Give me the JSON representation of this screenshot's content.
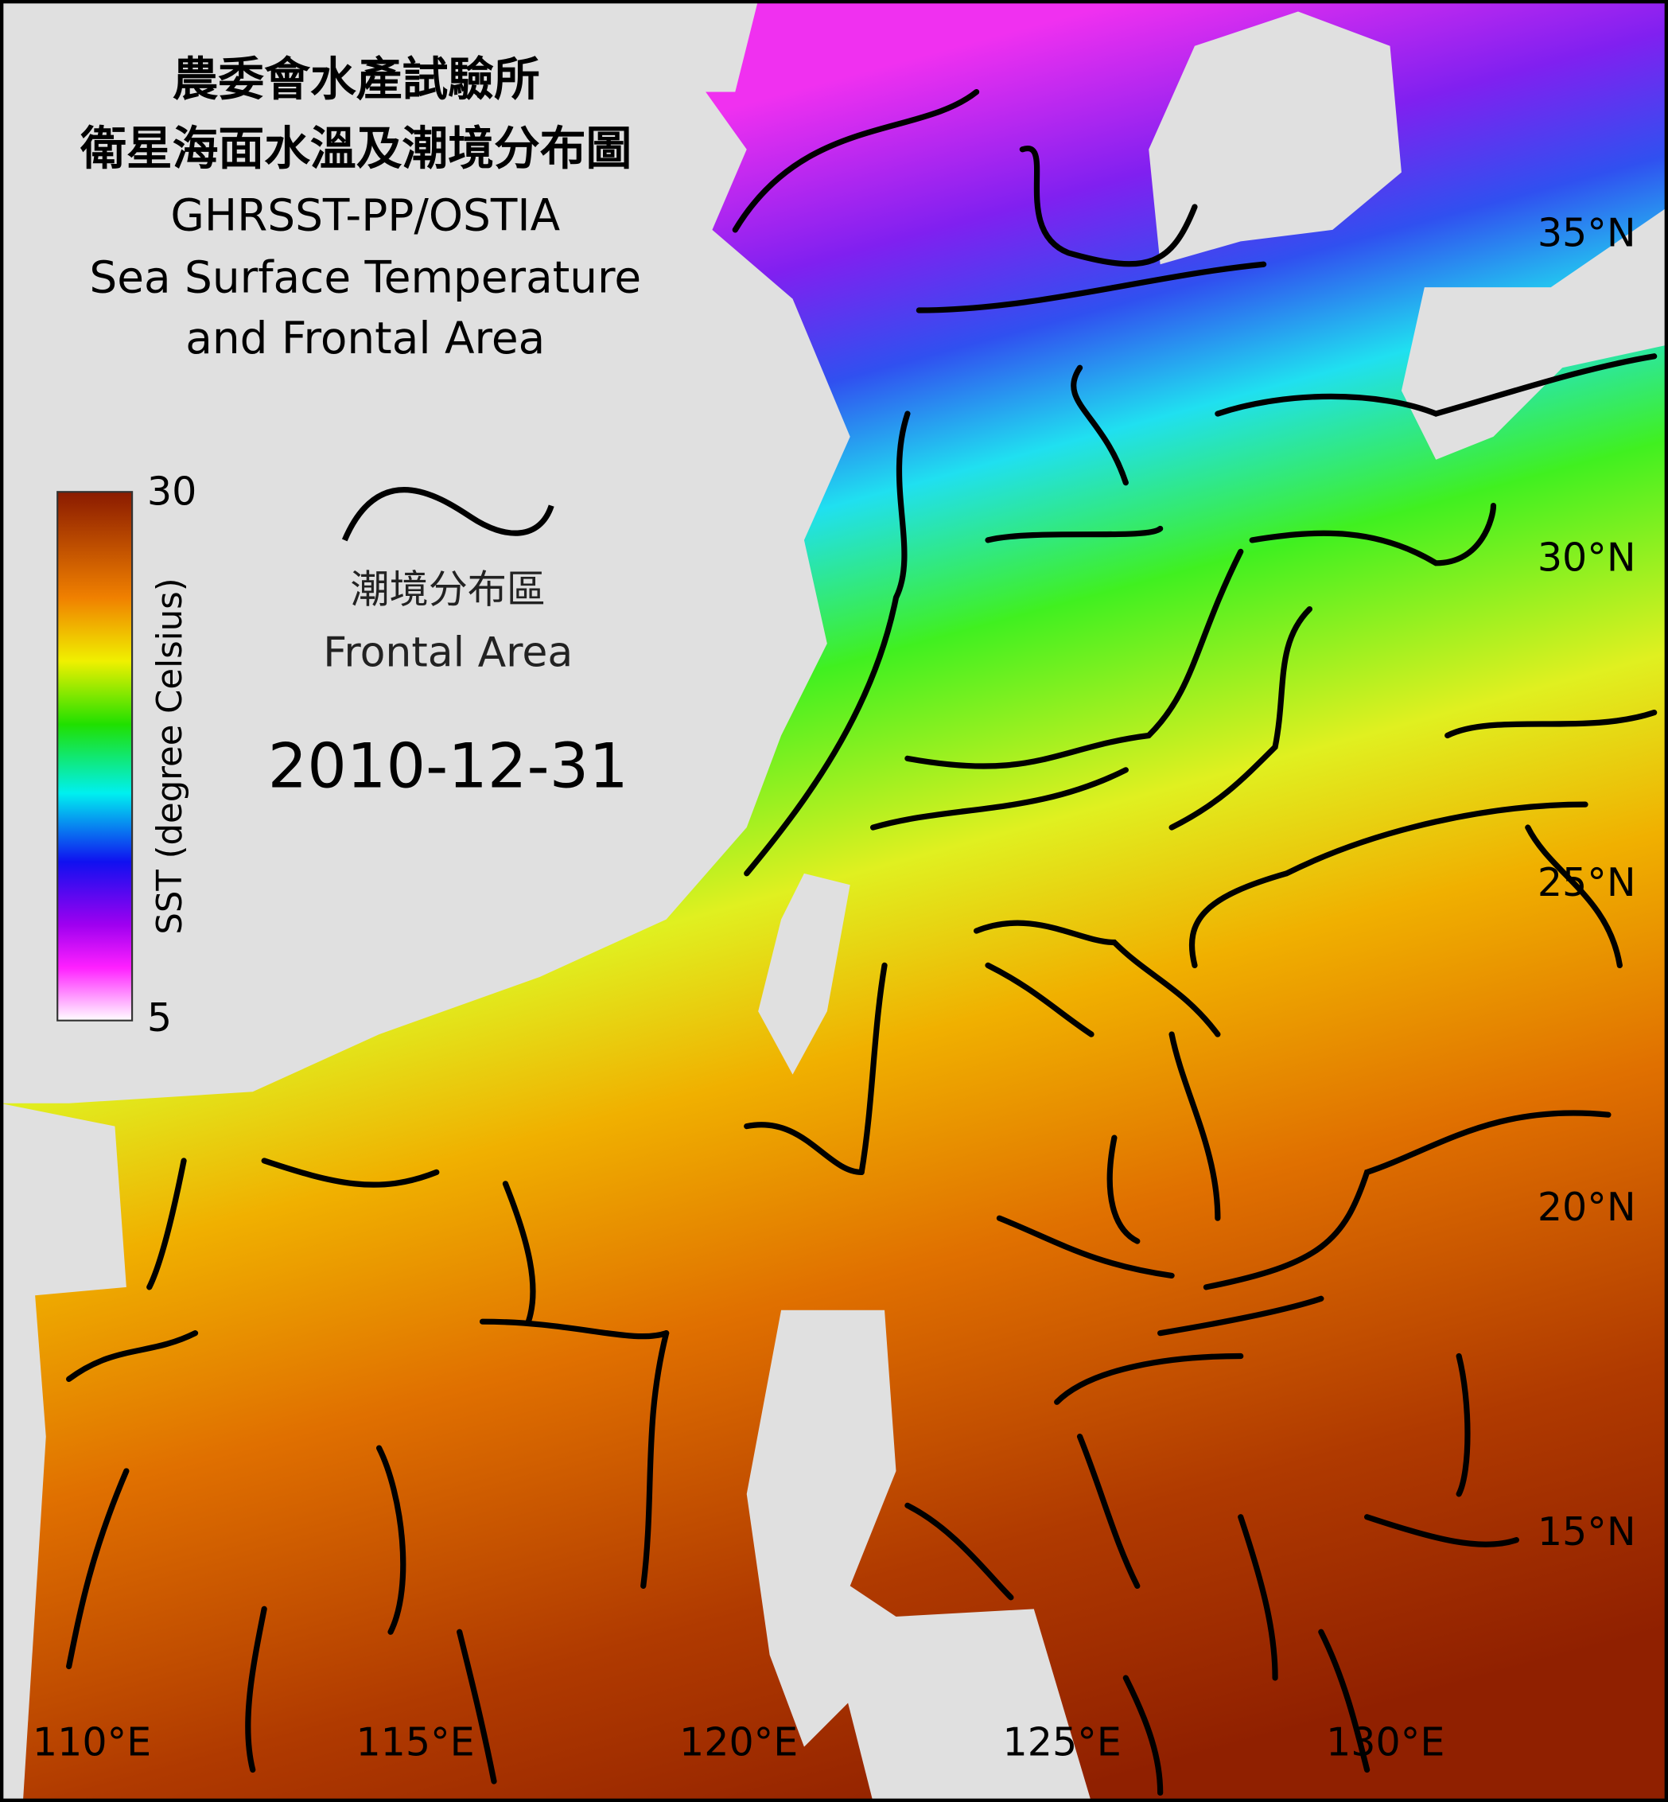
{
  "title": [
    "農委會水產試驗所",
    "衛星海面水溫及潮境分布圖"
  ],
  "subtitle": [
    "GHRSST-PP/OSTIA",
    "Sea Surface Temperature",
    "and Frontal Area"
  ],
  "colorbar": {
    "label": "SST (degree Celsius)",
    "ticks": [
      5,
      30
    ]
  },
  "legend": {
    "label": [
      "潮境分布區",
      "Frontal Area"
    ]
  },
  "date": "2010-12-31",
  "latitude_ticks": [
    {
      "value": 35,
      "label": "35°N"
    },
    {
      "value": 30,
      "label": "30°N"
    },
    {
      "value": 25,
      "label": "25°N"
    },
    {
      "value": 20,
      "label": "20°N"
    },
    {
      "value": 15,
      "label": "15°N"
    }
  ],
  "longitude_ticks": [
    {
      "value": 110,
      "label": "110°E"
    },
    {
      "value": 115,
      "label": "115°E"
    },
    {
      "value": 120,
      "label": "120°E"
    },
    {
      "value": 125,
      "label": "125°E"
    },
    {
      "value": 130,
      "label": "130°E"
    }
  ]
}
